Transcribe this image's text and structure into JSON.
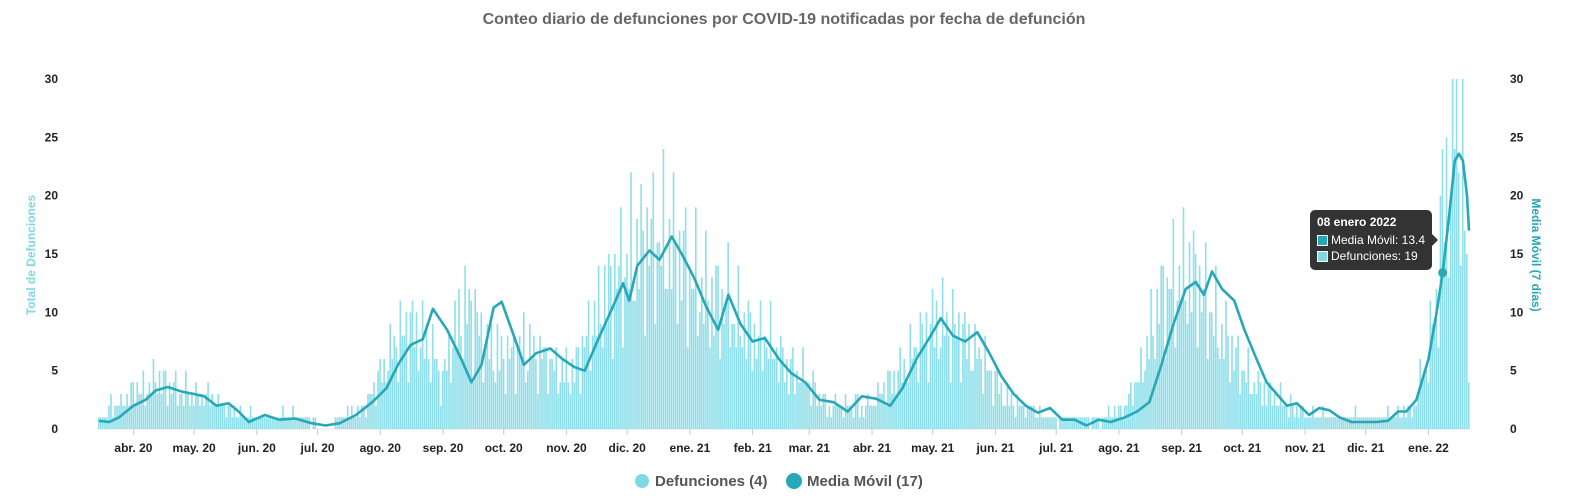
{
  "chart_data": {
    "type": "bar",
    "title": "Conteo diario de defunciones por COVID-19 notificadas por fecha de defunción",
    "ylabel_left": "Total de Defunciones",
    "ylabel_right": "Media Móvil (7 días)",
    "ylim": [
      0,
      30
    ],
    "yticks": [
      "0",
      "5",
      "10",
      "15",
      "20",
      "25",
      "30"
    ],
    "x_start": "2020-03-15",
    "x_end": "2022-01-21",
    "month_ticks": [
      {
        "label": "abr. 20",
        "date": "2020-04-01"
      },
      {
        "label": "may. 20",
        "date": "2020-05-01"
      },
      {
        "label": "jun. 20",
        "date": "2020-06-01"
      },
      {
        "label": "jul. 20",
        "date": "2020-07-01"
      },
      {
        "label": "ago. 20",
        "date": "2020-08-01"
      },
      {
        "label": "sep. 20",
        "date": "2020-09-01"
      },
      {
        "label": "oct. 20",
        "date": "2020-10-01"
      },
      {
        "label": "nov. 20",
        "date": "2020-11-01"
      },
      {
        "label": "dic. 20",
        "date": "2020-12-01"
      },
      {
        "label": "ene. 21",
        "date": "2021-01-01"
      },
      {
        "label": "feb. 21",
        "date": "2021-02-01"
      },
      {
        "label": "mar. 21",
        "date": "2021-03-01"
      },
      {
        "label": "abr. 21",
        "date": "2021-04-01"
      },
      {
        "label": "may. 21",
        "date": "2021-05-01"
      },
      {
        "label": "jun. 21",
        "date": "2021-06-01"
      },
      {
        "label": "jul. 21",
        "date": "2021-07-01"
      },
      {
        "label": "ago. 21",
        "date": "2021-08-01"
      },
      {
        "label": "sep. 21",
        "date": "2021-09-01"
      },
      {
        "label": "oct. 21",
        "date": "2021-10-01"
      },
      {
        "label": "nov. 21",
        "date": "2021-11-01"
      },
      {
        "label": "dic. 21",
        "date": "2021-12-01"
      },
      {
        "label": "ene. 22",
        "date": "2022-01-01"
      }
    ],
    "series": [
      {
        "name": "Defunciones (4)",
        "kind": "bar",
        "color": "#7dd9e6",
        "points": [
          [
            "2020-03-15",
            1
          ],
          [
            "2020-04-01",
            3
          ],
          [
            "2020-04-10",
            4
          ],
          [
            "2020-04-15",
            4
          ],
          [
            "2020-04-25",
            3
          ],
          [
            "2020-05-05",
            3
          ],
          [
            "2020-05-15",
            2
          ],
          [
            "2020-05-25",
            1
          ],
          [
            "2020-06-10",
            1
          ],
          [
            "2020-06-25",
            1
          ],
          [
            "2020-07-05",
            0
          ],
          [
            "2020-07-15",
            1
          ],
          [
            "2020-07-25",
            2
          ],
          [
            "2020-08-05",
            6
          ],
          [
            "2020-08-15",
            9
          ],
          [
            "2020-08-25",
            7
          ],
          [
            "2020-09-01",
            4
          ],
          [
            "2020-09-10",
            10
          ],
          [
            "2020-09-15",
            10
          ],
          [
            "2020-09-22",
            7
          ],
          [
            "2020-10-01",
            6
          ],
          [
            "2020-10-10",
            7
          ],
          [
            "2020-10-20",
            6
          ],
          [
            "2020-10-28",
            5
          ],
          [
            "2020-11-05",
            5
          ],
          [
            "2020-11-12",
            8
          ],
          [
            "2020-11-20",
            11
          ],
          [
            "2020-11-27",
            13
          ],
          [
            "2020-12-05",
            15
          ],
          [
            "2020-12-12",
            16
          ],
          [
            "2020-12-19",
            16
          ],
          [
            "2020-12-26",
            15
          ],
          [
            "2021-01-02",
            13
          ],
          [
            "2021-01-10",
            11
          ],
          [
            "2021-01-18",
            11
          ],
          [
            "2021-01-25",
            9
          ],
          [
            "2021-02-02",
            8
          ],
          [
            "2021-02-10",
            7
          ],
          [
            "2021-02-20",
            5
          ],
          [
            "2021-03-01",
            4
          ],
          [
            "2021-03-10",
            2
          ],
          [
            "2021-03-20",
            2
          ],
          [
            "2021-04-01",
            2
          ],
          [
            "2021-04-10",
            4
          ],
          [
            "2021-04-20",
            6
          ],
          [
            "2021-04-28",
            8
          ],
          [
            "2021-05-05",
            9
          ],
          [
            "2021-05-15",
            8
          ],
          [
            "2021-05-25",
            6
          ],
          [
            "2021-06-05",
            3
          ],
          [
            "2021-06-15",
            2
          ],
          [
            "2021-06-25",
            1
          ],
          [
            "2021-07-05",
            1
          ],
          [
            "2021-07-15",
            1
          ],
          [
            "2021-07-25",
            1
          ],
          [
            "2021-08-05",
            2
          ],
          [
            "2021-08-12",
            5
          ],
          [
            "2021-08-20",
            10
          ],
          [
            "2021-08-25",
            12
          ],
          [
            "2021-09-01",
            13
          ],
          [
            "2021-09-08",
            13
          ],
          [
            "2021-09-15",
            10
          ],
          [
            "2021-09-25",
            7
          ],
          [
            "2021-10-05",
            4
          ],
          [
            "2021-10-15",
            3
          ],
          [
            "2021-10-25",
            2
          ],
          [
            "2021-11-05",
            1
          ],
          [
            "2021-11-15",
            1
          ],
          [
            "2021-11-25",
            1
          ],
          [
            "2021-12-05",
            1
          ],
          [
            "2021-12-15",
            1
          ],
          [
            "2021-12-25",
            2
          ],
          [
            "2022-01-01",
            6
          ],
          [
            "2022-01-05",
            11
          ],
          [
            "2022-01-08",
            19
          ],
          [
            "2022-01-12",
            22
          ],
          [
            "2022-01-14",
            30
          ],
          [
            "2022-01-17",
            23
          ],
          [
            "2022-01-20",
            15
          ],
          [
            "2022-01-21",
            4
          ]
        ]
      },
      {
        "name": "Media Móvil (17)",
        "kind": "line",
        "color": "#26a8b8",
        "points": [
          [
            "2020-03-15",
            0.7
          ],
          [
            "2020-03-20",
            0.6
          ],
          [
            "2020-03-25",
            1.0
          ],
          [
            "2020-04-01",
            2.0
          ],
          [
            "2020-04-07",
            2.5
          ],
          [
            "2020-04-12",
            3.3
          ],
          [
            "2020-04-18",
            3.6
          ],
          [
            "2020-04-25",
            3.2
          ],
          [
            "2020-05-01",
            3.0
          ],
          [
            "2020-05-06",
            2.8
          ],
          [
            "2020-05-12",
            2.0
          ],
          [
            "2020-05-18",
            2.2
          ],
          [
            "2020-05-23",
            1.5
          ],
          [
            "2020-05-28",
            0.6
          ],
          [
            "2020-06-05",
            1.2
          ],
          [
            "2020-06-12",
            0.8
          ],
          [
            "2020-06-20",
            0.9
          ],
          [
            "2020-06-28",
            0.5
          ],
          [
            "2020-07-05",
            0.3
          ],
          [
            "2020-07-12",
            0.5
          ],
          [
            "2020-07-20",
            1.2
          ],
          [
            "2020-07-28",
            2.3
          ],
          [
            "2020-08-04",
            3.5
          ],
          [
            "2020-08-10",
            5.6
          ],
          [
            "2020-08-16",
            7.2
          ],
          [
            "2020-08-22",
            7.7
          ],
          [
            "2020-08-27",
            10.3
          ],
          [
            "2020-09-03",
            8.5
          ],
          [
            "2020-09-10",
            6.0
          ],
          [
            "2020-09-15",
            4.0
          ],
          [
            "2020-09-20",
            5.5
          ],
          [
            "2020-09-26",
            10.4
          ],
          [
            "2020-09-30",
            10.9
          ],
          [
            "2020-10-06",
            8.0
          ],
          [
            "2020-10-11",
            5.5
          ],
          [
            "2020-10-17",
            6.5
          ],
          [
            "2020-10-24",
            6.9
          ],
          [
            "2020-10-30",
            6.0
          ],
          [
            "2020-11-05",
            5.3
          ],
          [
            "2020-11-10",
            5.0
          ],
          [
            "2020-11-17",
            7.8
          ],
          [
            "2020-11-24",
            10.5
          ],
          [
            "2020-11-29",
            12.5
          ],
          [
            "2020-12-02",
            11.0
          ],
          [
            "2020-12-06",
            14.0
          ],
          [
            "2020-12-12",
            15.3
          ],
          [
            "2020-12-17",
            14.5
          ],
          [
            "2020-12-23",
            16.5
          ],
          [
            "2020-12-28",
            15.0
          ],
          [
            "2021-01-03",
            13.0
          ],
          [
            "2021-01-09",
            10.5
          ],
          [
            "2021-01-15",
            8.5
          ],
          [
            "2021-01-20",
            11.5
          ],
          [
            "2021-01-26",
            9.0
          ],
          [
            "2021-02-01",
            7.5
          ],
          [
            "2021-02-07",
            7.8
          ],
          [
            "2021-02-14",
            6.0
          ],
          [
            "2021-02-20",
            4.8
          ],
          [
            "2021-02-27",
            4.0
          ],
          [
            "2021-03-06",
            2.5
          ],
          [
            "2021-03-13",
            2.3
          ],
          [
            "2021-03-20",
            1.5
          ],
          [
            "2021-03-27",
            2.8
          ],
          [
            "2021-04-03",
            2.6
          ],
          [
            "2021-04-10",
            2.0
          ],
          [
            "2021-04-16",
            3.5
          ],
          [
            "2021-04-23",
            6.0
          ],
          [
            "2021-04-30",
            8.0
          ],
          [
            "2021-05-05",
            9.5
          ],
          [
            "2021-05-11",
            8.0
          ],
          [
            "2021-05-17",
            7.5
          ],
          [
            "2021-05-23",
            8.3
          ],
          [
            "2021-05-29",
            6.5
          ],
          [
            "2021-06-04",
            4.5
          ],
          [
            "2021-06-10",
            3.0
          ],
          [
            "2021-06-16",
            2.0
          ],
          [
            "2021-06-22",
            1.4
          ],
          [
            "2021-06-28",
            1.8
          ],
          [
            "2021-07-04",
            0.8
          ],
          [
            "2021-07-10",
            0.8
          ],
          [
            "2021-07-16",
            0.3
          ],
          [
            "2021-07-22",
            0.8
          ],
          [
            "2021-07-28",
            0.6
          ],
          [
            "2021-08-04",
            1.0
          ],
          [
            "2021-08-10",
            1.5
          ],
          [
            "2021-08-16",
            2.3
          ],
          [
            "2021-08-22",
            5.5
          ],
          [
            "2021-08-28",
            9.0
          ],
          [
            "2021-09-03",
            12.0
          ],
          [
            "2021-09-08",
            12.6
          ],
          [
            "2021-09-12",
            11.5
          ],
          [
            "2021-09-16",
            13.5
          ],
          [
            "2021-09-21",
            12.0
          ],
          [
            "2021-09-27",
            11.0
          ],
          [
            "2021-10-02",
            8.5
          ],
          [
            "2021-10-08",
            6.0
          ],
          [
            "2021-10-13",
            4.0
          ],
          [
            "2021-10-18",
            3.0
          ],
          [
            "2021-10-23",
            2.0
          ],
          [
            "2021-10-28",
            2.2
          ],
          [
            "2021-11-03",
            1.2
          ],
          [
            "2021-11-08",
            1.8
          ],
          [
            "2021-11-13",
            1.6
          ],
          [
            "2021-11-18",
            1.0
          ],
          [
            "2021-11-24",
            0.6
          ],
          [
            "2021-11-30",
            0.6
          ],
          [
            "2021-12-06",
            0.6
          ],
          [
            "2021-12-12",
            0.7
          ],
          [
            "2021-12-17",
            1.5
          ],
          [
            "2021-12-21",
            1.5
          ],
          [
            "2021-12-26",
            2.5
          ],
          [
            "2022-01-01",
            6.0
          ],
          [
            "2022-01-05",
            10.0
          ],
          [
            "2022-01-08",
            13.4
          ],
          [
            "2022-01-11",
            18.0
          ],
          [
            "2022-01-14",
            23.0
          ],
          [
            "2022-01-16",
            23.6
          ],
          [
            "2022-01-18",
            23.0
          ],
          [
            "2022-01-20",
            20.0
          ],
          [
            "2022-01-21",
            17.0
          ]
        ]
      }
    ],
    "tooltip": {
      "title": "08 enero 2022",
      "date": "2022-01-08",
      "value": 13.4,
      "rows": [
        {
          "label": "Media Móvil: 13.4",
          "color": "#26a8b8"
        },
        {
          "label": "Defunciones: 19",
          "color": "#7dd9e6"
        }
      ]
    },
    "legend": {
      "position": "bottom-center",
      "items": [
        {
          "label": "Defunciones (4)",
          "color": "#7dd9e6"
        },
        {
          "label": "Media Móvil (17)",
          "color": "#26a8b8"
        }
      ]
    }
  }
}
